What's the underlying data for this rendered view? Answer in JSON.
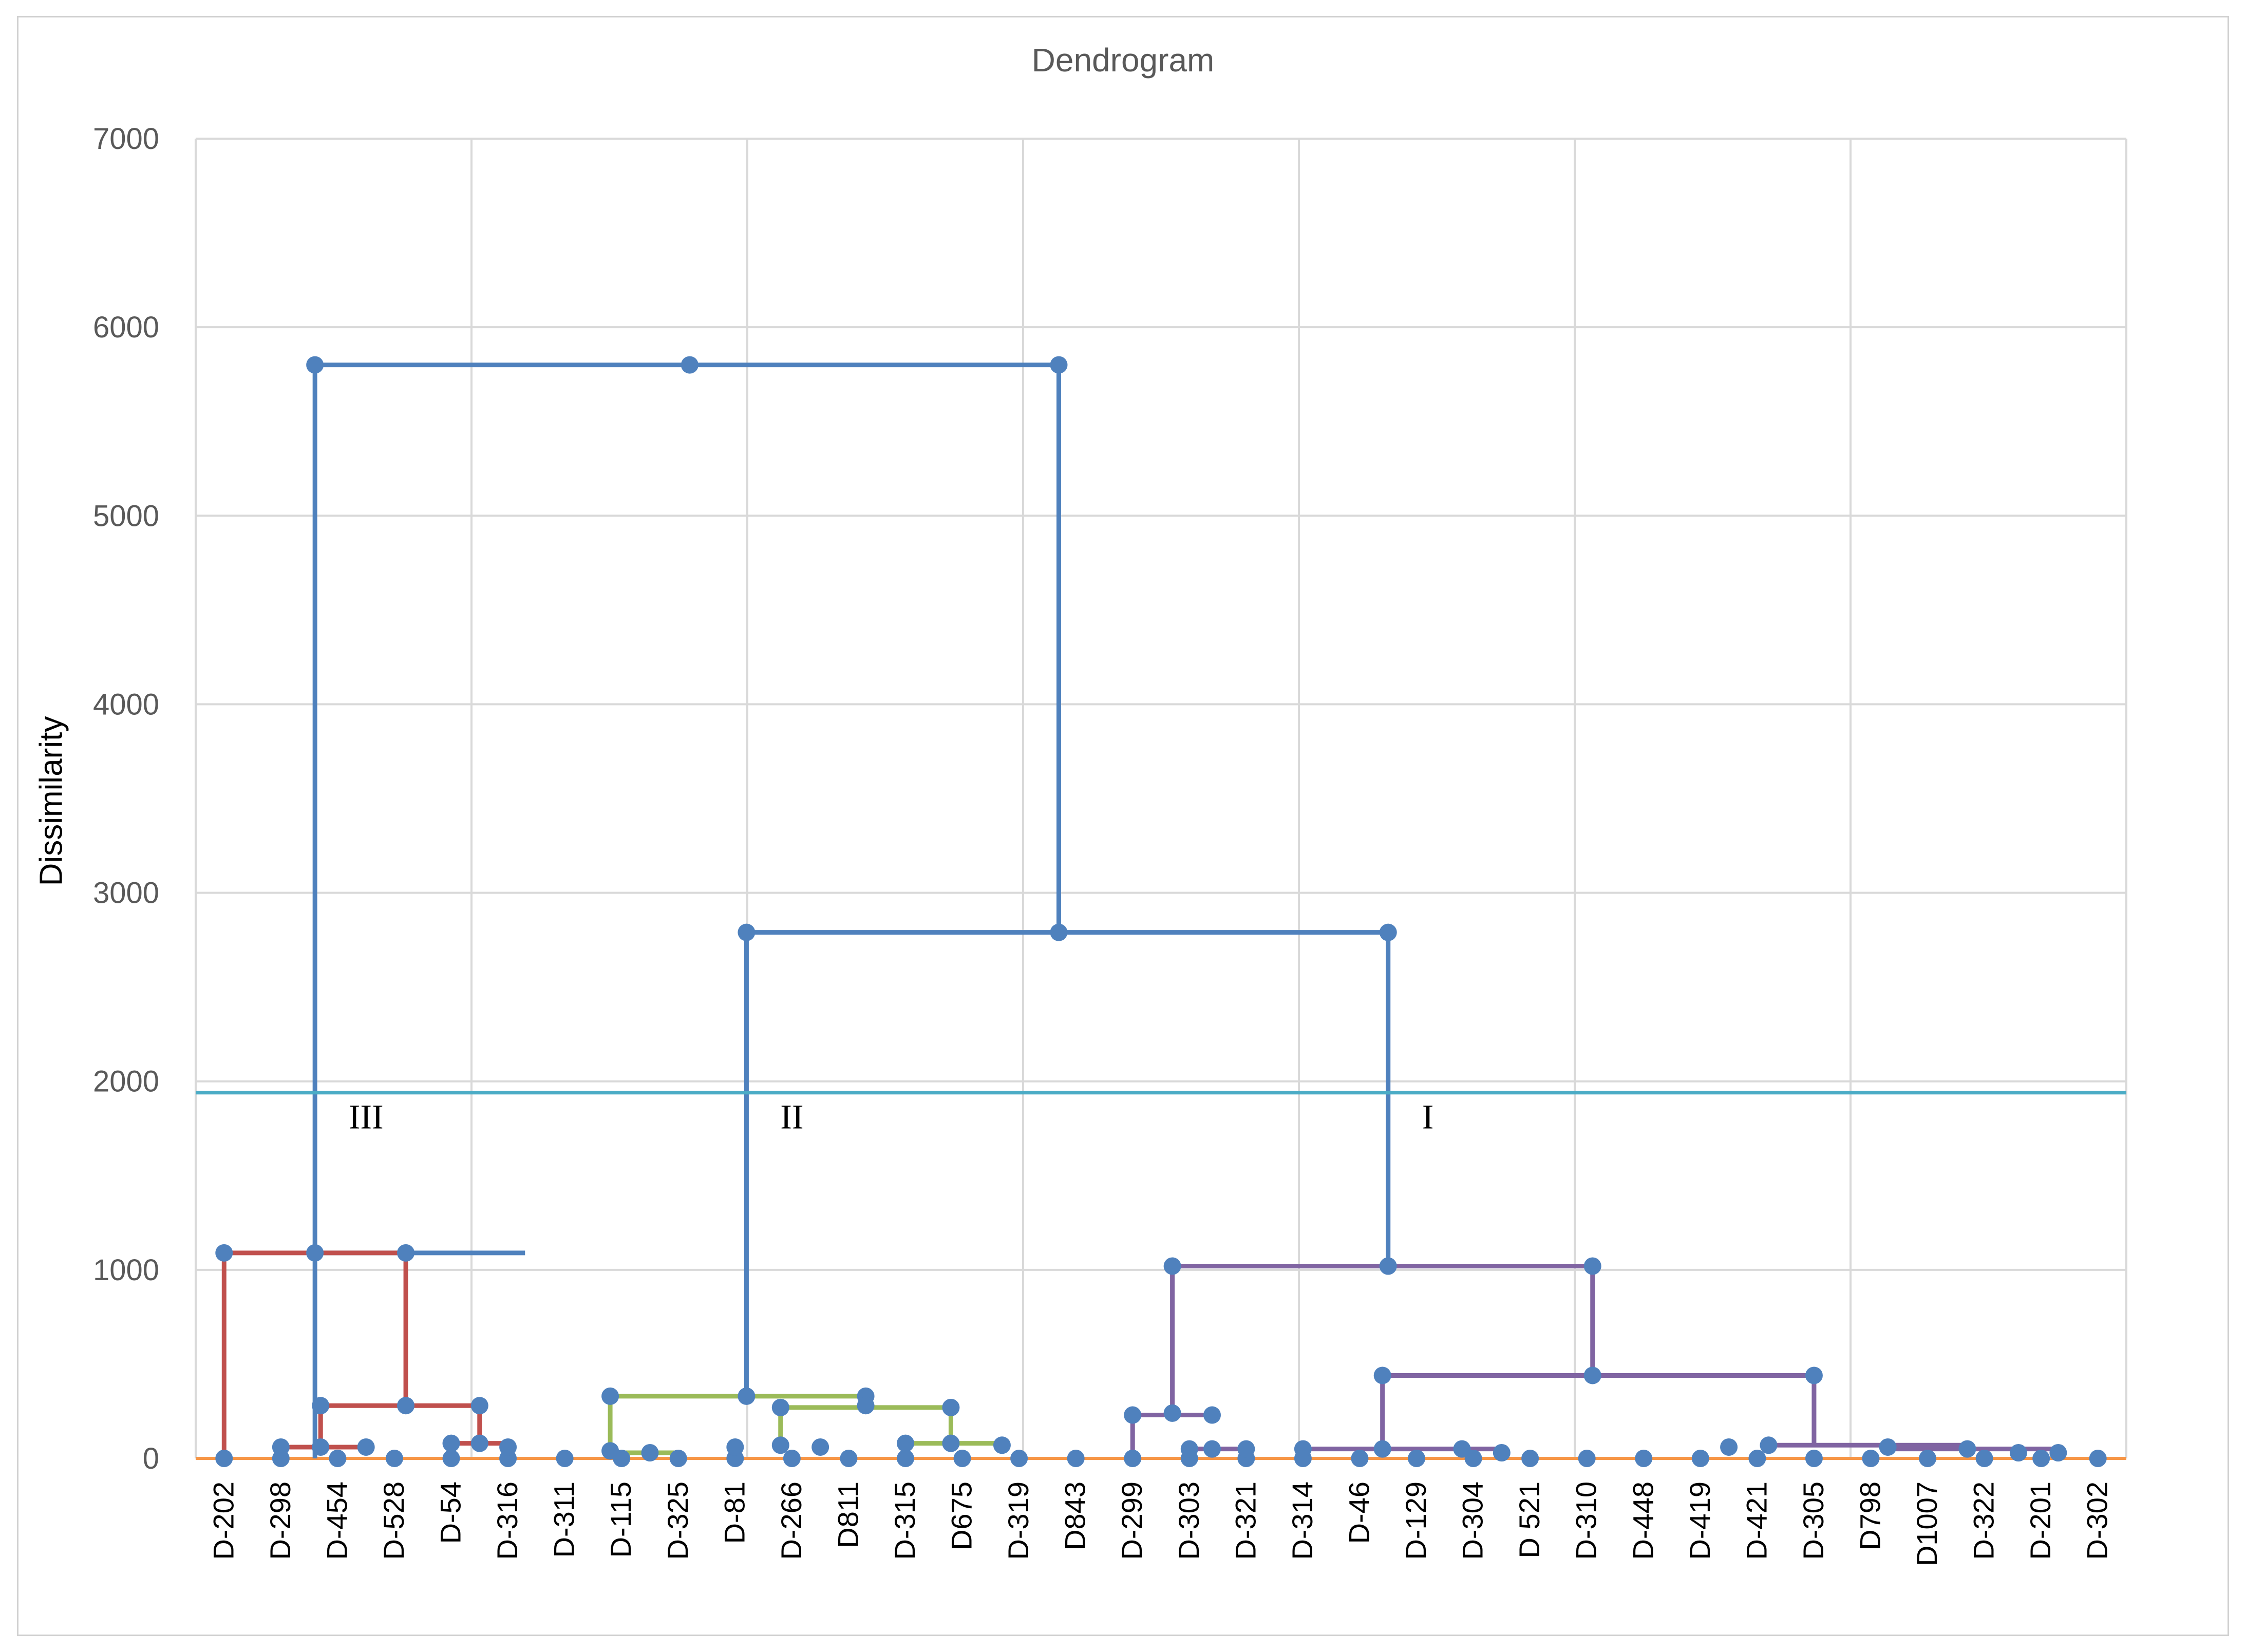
{
  "chart_data": {
    "type": "dendrogram",
    "title": "Dendrogram",
    "ylabel": "Dissimilarity",
    "xlabel": "",
    "ylim": [
      0,
      7000
    ],
    "yticks": [
      0,
      1000,
      2000,
      3000,
      4000,
      5000,
      6000,
      7000
    ],
    "grid": true,
    "leaves": [
      "D-202",
      "D-298",
      "D-454",
      "D-528",
      "D-54",
      "D-316",
      "D-311",
      "D-115",
      "D-325",
      "D-81",
      "D-266",
      "D811",
      "D-315",
      "D675",
      "D-319",
      "D843",
      "D-299",
      "D-303",
      "D-321",
      "D-314",
      "D-46",
      "D-129",
      "D-304",
      "D 521",
      "D-310",
      "D-448",
      "D-419",
      "D-421",
      "D-305",
      "D798",
      "D1007",
      "D-322",
      "D-201",
      "D-302"
    ],
    "cut_line": {
      "value": 1940,
      "color": "#4bacc6"
    },
    "cluster_labels": [
      {
        "text": "III",
        "x": 2.5,
        "y": 1750
      },
      {
        "text": "II",
        "x": 10,
        "y": 1750
      },
      {
        "text": "I",
        "x": 21.2,
        "y": 1750
      }
    ],
    "colors": {
      "root": "#4f81bd",
      "cluster_III": "#c0504d",
      "cluster_II": "#9bbb59",
      "cluster_I": "#8064a2",
      "baseline": "#f79646"
    },
    "merges": [
      {
        "x1": 1.6,
        "x2": 5.3,
        "y": 1090,
        "y1": 0,
        "y2": 1090,
        "color": "#4f81bd"
      },
      {
        "x1": 9.2,
        "x2": 14.7,
        "y": 2790,
        "y1": 330,
        "y2": 2790,
        "color": "#4f81bd"
      },
      {
        "x1": 14.7,
        "x2": 20.5,
        "y": 2790,
        "y1": 2790,
        "y2": 1020,
        "color": "#4f81bd"
      },
      {
        "x1": 1.6,
        "x2": 14.7,
        "y": 5800,
        "y1": 1090,
        "y2": 2790,
        "color": "#4f81bd"
      },
      {
        "x1": 0,
        "x2": 3.2,
        "y": 1090,
        "y1": 0,
        "y2": 280,
        "color": "#c0504d"
      },
      {
        "x1": 1.7,
        "x2": 4.5,
        "y": 280,
        "y1": 60,
        "y2": 80,
        "color": "#c0504d"
      },
      {
        "x1": 1,
        "x2": 2.5,
        "y": 60,
        "y1": 0,
        "y2": 40,
        "color": "#c0504d"
      },
      {
        "x1": 4,
        "x2": 5,
        "y": 80,
        "y1": 0,
        "y2": 60,
        "color": "#c0504d"
      },
      {
        "x1": 6.8,
        "x2": 11.3,
        "y": 330,
        "y1": 40,
        "y2": 280,
        "color": "#9bbb59"
      },
      {
        "x1": 7,
        "x2": 8,
        "y": 30,
        "y1": 0,
        "y2": 10,
        "color": "#9bbb59"
      },
      {
        "x1": 9.8,
        "x2": 12.8,
        "y": 270,
        "y1": 60,
        "y2": 80,
        "color": "#9bbb59"
      },
      {
        "x1": 12,
        "x2": 13.7,
        "y": 80,
        "y1": 0,
        "y2": 70,
        "color": "#9bbb59"
      },
      {
        "x1": 16.7,
        "x2": 24.1,
        "y": 1020,
        "y1": 240,
        "y2": 440,
        "color": "#8064a2"
      },
      {
        "x1": 16,
        "x2": 17.4,
        "y": 230,
        "y1": 0,
        "y2": 230,
        "color": "#8064a2"
      },
      {
        "x1": 17,
        "x2": 18,
        "y": 50,
        "y1": 0,
        "y2": 50,
        "color": "#8064a2"
      },
      {
        "x1": 20.4,
        "x2": 28,
        "y": 440,
        "y1": 50,
        "y2": 70,
        "color": "#8064a2"
      },
      {
        "x1": 19,
        "x2": 22.5,
        "y": 50,
        "y1": 0,
        "y2": 30,
        "color": "#8064a2"
      },
      {
        "x1": 27.2,
        "x2": 30.7,
        "y": 70,
        "y1": 60,
        "y2": 50,
        "color": "#8064a2"
      },
      {
        "x1": 29.3,
        "x2": 32.3,
        "y": 50,
        "y1": 20,
        "y2": 30,
        "color": "#8064a2"
      }
    ],
    "nodes": [
      {
        "x": 1.6,
        "y": 5800
      },
      {
        "x": 8.2,
        "y": 5800
      },
      {
        "x": 14.7,
        "y": 5800
      },
      {
        "x": 9.2,
        "y": 2790
      },
      {
        "x": 14.7,
        "y": 2790
      },
      {
        "x": 20.5,
        "y": 2790
      },
      {
        "x": 0,
        "y": 1090
      },
      {
        "x": 1.6,
        "y": 1090
      },
      {
        "x": 3.2,
        "y": 1090
      },
      {
        "x": 16.7,
        "y": 1020
      },
      {
        "x": 20.5,
        "y": 1020
      },
      {
        "x": 24.1,
        "y": 1020
      },
      {
        "x": 20.4,
        "y": 440
      },
      {
        "x": 24.1,
        "y": 440
      },
      {
        "x": 28,
        "y": 440
      },
      {
        "x": 6.8,
        "y": 330
      },
      {
        "x": 9.2,
        "y": 330
      },
      {
        "x": 11.3,
        "y": 330
      },
      {
        "x": 1.7,
        "y": 280
      },
      {
        "x": 3.2,
        "y": 280
      },
      {
        "x": 4.5,
        "y": 280
      },
      {
        "x": 9.8,
        "y": 270
      },
      {
        "x": 11.3,
        "y": 280
      },
      {
        "x": 12.8,
        "y": 270
      },
      {
        "x": 16,
        "y": 230
      },
      {
        "x": 16.7,
        "y": 240
      },
      {
        "x": 17.4,
        "y": 230
      },
      {
        "x": 1,
        "y": 60
      },
      {
        "x": 1.7,
        "y": 60
      },
      {
        "x": 2.5,
        "y": 60
      },
      {
        "x": 4,
        "y": 80
      },
      {
        "x": 4.5,
        "y": 80
      },
      {
        "x": 5,
        "y": 60
      },
      {
        "x": 6.8,
        "y": 40
      },
      {
        "x": 7.5,
        "y": 30
      },
      {
        "x": 9,
        "y": 60
      },
      {
        "x": 9.8,
        "y": 70
      },
      {
        "x": 10.5,
        "y": 60
      },
      {
        "x": 12,
        "y": 80
      },
      {
        "x": 12.8,
        "y": 80
      },
      {
        "x": 13.7,
        "y": 70
      },
      {
        "x": 17,
        "y": 50
      },
      {
        "x": 17.4,
        "y": 50
      },
      {
        "x": 18,
        "y": 50
      },
      {
        "x": 19,
        "y": 50
      },
      {
        "x": 20.4,
        "y": 50
      },
      {
        "x": 21.8,
        "y": 50
      },
      {
        "x": 22.5,
        "y": 30
      },
      {
        "x": 26.5,
        "y": 60
      },
      {
        "x": 27.2,
        "y": 70
      },
      {
        "x": 29.3,
        "y": 60
      },
      {
        "x": 30.7,
        "y": 50
      },
      {
        "x": 31.6,
        "y": 30
      },
      {
        "x": 32.3,
        "y": 30
      }
    ]
  }
}
